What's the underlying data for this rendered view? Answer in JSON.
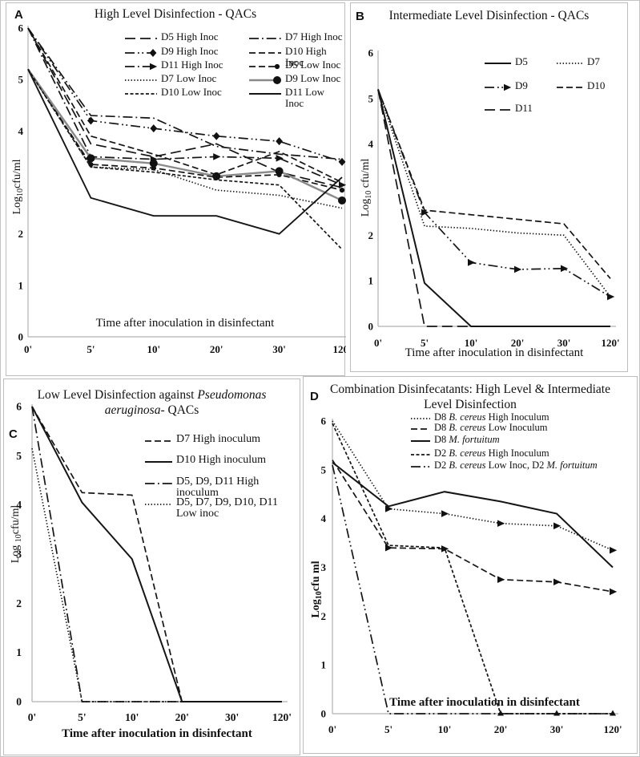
{
  "figure": {
    "colors": {
      "line": "#151515",
      "gray_series": "#8a8a8a",
      "axis": "#b0b0b0",
      "background": "#ffffff",
      "border": "#bdbdbd"
    }
  },
  "chart_data": [
    {
      "panel_letter": "A",
      "type": "line",
      "title_lines": [
        [
          {
            "t": "High Level Disinfection  - QACs"
          }
        ]
      ],
      "ylabel_parts": [
        {
          "t": "Log"
        },
        {
          "t": "10",
          "sub": true
        },
        {
          "t": "cfu/ml"
        }
      ],
      "ylabel_bold": false,
      "xlabel": "Time after inoculation in disinfectant",
      "xlabel_inside": true,
      "x_categories": [
        "0'",
        "5'",
        "10'",
        "20'",
        "30'",
        "120'"
      ],
      "y_ticks": [
        "6",
        "5",
        "4",
        "2",
        "1",
        "0"
      ],
      "ylim": [
        0,
        6
      ],
      "legend_columns": 2,
      "series": [
        {
          "name_parts": [
            {
              "t": "D5 High Inoc"
            }
          ],
          "dash": "long-dash",
          "marker": "none",
          "values": [
            6.0,
            3.75,
            3.5,
            3.75,
            3.2,
            2.9
          ]
        },
        {
          "name_parts": [
            {
              "t": "D7 High Inoc"
            }
          ],
          "dash": "dash-dot",
          "marker": "none",
          "values": [
            6.0,
            4.3,
            4.25,
            3.7,
            3.55,
            3.45
          ]
        },
        {
          "name_parts": [
            {
              "t": "D9 High Inoc"
            }
          ],
          "dash": "dash-dot-dot",
          "marker": "diamond",
          "marker_points": [
            1,
            2,
            3,
            4,
            5
          ],
          "values": [
            6.0,
            4.2,
            4.05,
            3.9,
            3.8,
            3.4
          ]
        },
        {
          "name_parts": [
            {
              "t": "D10 High Inoc"
            }
          ],
          "dash": "dash",
          "marker": "none",
          "values": [
            6.0,
            3.9,
            3.55,
            3.15,
            3.6,
            3.0
          ]
        },
        {
          "name_parts": [
            {
              "t": "D11 High Inoc"
            }
          ],
          "dash": "dash-dot",
          "marker": "arrow",
          "marker_points": [
            1,
            2,
            3,
            4,
            5
          ],
          "values": [
            6.0,
            3.5,
            3.45,
            3.5,
            3.47,
            2.95
          ]
        },
        {
          "name_parts": [
            {
              "t": "D5 Low Inoc"
            }
          ],
          "dash": "dash",
          "marker": "dot-small",
          "marker_points": [
            1,
            2,
            3,
            4,
            5
          ],
          "values": [
            5.2,
            3.35,
            3.28,
            3.1,
            3.15,
            2.85
          ]
        },
        {
          "name_parts": [
            {
              "t": "D7 Low Inoc"
            }
          ],
          "dash": "dot",
          "marker": "none",
          "values": [
            5.2,
            3.3,
            3.25,
            2.85,
            2.75,
            2.5
          ]
        },
        {
          "name_parts": [
            {
              "t": "D9 Low Inoc"
            }
          ],
          "dash": "solid",
          "marker": "dot-large",
          "marker_points": [
            1,
            2,
            3,
            4,
            5
          ],
          "color": "gray",
          "width": 2.4,
          "values": [
            5.2,
            3.47,
            3.37,
            3.12,
            3.22,
            2.65
          ]
        },
        {
          "name_parts": [
            {
              "t": "D10 Low Inoc"
            }
          ],
          "dash": "short-dash",
          "marker": "none",
          "values": [
            5.2,
            3.3,
            3.2,
            3.05,
            2.95,
            1.7
          ]
        },
        {
          "name_parts": [
            {
              "t": "D11 Low Inoc"
            }
          ],
          "dash": "solid",
          "marker": "none",
          "width": 1.9,
          "values": [
            5.2,
            2.7,
            2.35,
            2.35,
            2.0,
            3.1
          ]
        }
      ]
    },
    {
      "panel_letter": "B",
      "type": "line",
      "title_lines": [
        [
          {
            "t": "Intermediate Level Disinfection - QACs"
          }
        ]
      ],
      "ylabel_parts": [
        {
          "t": "Log"
        },
        {
          "t": "10",
          "sub": true
        },
        {
          "t": " cfu/ml"
        }
      ],
      "ylabel_bold": false,
      "xlabel": "Time after inoculation in disinfectant",
      "xlabel_inside": false,
      "x_categories": [
        "0'",
        "5'",
        "10'",
        "20'",
        "30'",
        "120'"
      ],
      "y_ticks": [
        "6",
        "5",
        "4",
        "2",
        "1",
        "0"
      ],
      "ylim": [
        0,
        6
      ],
      "legend_columns": 2,
      "series": [
        {
          "name_parts": [
            {
              "t": "D5"
            }
          ],
          "dash": "solid",
          "marker": "none",
          "width": 2,
          "values": [
            5.2,
            0.95,
            0,
            0,
            0,
            0
          ]
        },
        {
          "name_parts": [
            {
              "t": "D7"
            }
          ],
          "dash": "dot",
          "marker": "none",
          "values": [
            5.2,
            2.2,
            2.15,
            2.05,
            2.0,
            0.65
          ]
        },
        {
          "name_parts": [
            {
              "t": "D9"
            }
          ],
          "dash": "dash-dot-dot",
          "marker": "arrow",
          "marker_points": [
            1,
            2,
            3,
            4,
            5
          ],
          "values": [
            5.2,
            2.5,
            1.4,
            1.25,
            1.27,
            0.65
          ]
        },
        {
          "name_parts": [
            {
              "t": "D10"
            }
          ],
          "dash": "dash",
          "marker": "none",
          "values": [
            5.2,
            2.55,
            2.45,
            2.35,
            2.25,
            1.05
          ]
        },
        {
          "name_parts": [
            {
              "t": "D11"
            }
          ],
          "dash": "long-dash",
          "marker": "none",
          "values": [
            5.2,
            0,
            0,
            0,
            0,
            0
          ]
        }
      ]
    },
    {
      "panel_letter": "C",
      "type": "line",
      "title_lines": [
        [
          {
            "t": "Low Level Disinfection against "
          },
          {
            "t": "Pseudomonas",
            "i": true
          }
        ],
        [
          {
            "t": "aeruginosa",
            "i": true
          },
          {
            "t": "- QACs"
          }
        ]
      ],
      "ylabel_parts": [
        {
          "t": "Log "
        },
        {
          "t": "10",
          "sub": true
        },
        {
          "t": "cfu/ml"
        }
      ],
      "ylabel_bold": false,
      "xlabel": "Time after inoculation in disinfectant",
      "xlabel_inside": false,
      "x_categories": [
        "0'",
        "5'",
        "10'",
        "20'",
        "30'",
        "120'"
      ],
      "y_ticks": [
        "6",
        "5",
        "4",
        "3",
        "2",
        "1",
        "0"
      ],
      "ylim": [
        0,
        6
      ],
      "legend_columns": 1,
      "series": [
        {
          "name_parts": [
            {
              "t": "D7 High inoculum"
            }
          ],
          "dash": "dash",
          "marker": "none",
          "values": [
            6.0,
            4.25,
            4.2,
            0,
            0,
            0
          ]
        },
        {
          "name_parts": [
            {
              "t": "D10 High inoculum"
            }
          ],
          "dash": "solid",
          "marker": "none",
          "width": 2,
          "values": [
            6.0,
            4.05,
            2.9,
            0,
            0,
            0
          ]
        },
        {
          "name_parts": [
            {
              "t": "D5, D9, D11 High inoculum"
            }
          ],
          "dash": "dash-dot",
          "marker": "none",
          "values": [
            6.0,
            0,
            0,
            0,
            0,
            0
          ]
        },
        {
          "name_parts": [
            {
              "t": "D5, D7, D9, D10, D11 Low inoc"
            }
          ],
          "dash": "dot",
          "marker": "none",
          "values": [
            5.15,
            0,
            0,
            0,
            0,
            0
          ]
        }
      ]
    },
    {
      "panel_letter": "D",
      "type": "line",
      "title_lines": [
        [
          {
            "t": "Combination Disinfecatants: High Level & Intermediate"
          }
        ],
        [
          {
            "t": "Level Disinfection"
          }
        ]
      ],
      "ylabel_parts": [
        {
          "t": "Log"
        },
        {
          "t": "10",
          "sub": true
        },
        {
          "t": "cfu ml"
        }
      ],
      "ylabel_bold": true,
      "xlabel": "Time after inoculation in disinfectant",
      "xlabel_inside": true,
      "x_categories": [
        "0'",
        "5'",
        "10'",
        "20'",
        "30'",
        "120'"
      ],
      "y_ticks": [
        "6",
        "5",
        "4",
        "3",
        "2",
        "1",
        "0"
      ],
      "ylim": [
        0,
        6
      ],
      "legend_columns": 1,
      "legend_markers": false,
      "series": [
        {
          "name_parts": [
            {
              "t": "D8 "
            },
            {
              "t": "B. cereus",
              "i": true
            },
            {
              "t": " High Inoculum"
            }
          ],
          "dash": "dot",
          "marker": "arrow",
          "marker_points": [
            1,
            2,
            3,
            4,
            5
          ],
          "values": [
            6.0,
            4.2,
            4.1,
            3.9,
            3.85,
            3.35
          ]
        },
        {
          "name_parts": [
            {
              "t": "D8 "
            },
            {
              "t": "B. cereus",
              "i": true
            },
            {
              "t": " Low Inoculum"
            }
          ],
          "dash": "dash",
          "marker": "arrow",
          "marker_points": [
            1,
            2,
            3,
            4,
            5
          ],
          "values": [
            5.2,
            3.4,
            3.38,
            2.75,
            2.7,
            2.5
          ]
        },
        {
          "name_parts": [
            {
              "t": "D8 "
            },
            {
              "t": "M. fortuitum",
              "i": true
            }
          ],
          "dash": "solid",
          "marker": "none",
          "width": 2,
          "values": [
            5.15,
            4.25,
            4.55,
            4.35,
            4.1,
            3.0
          ]
        },
        {
          "name_parts": [
            {
              "t": "D2 "
            },
            {
              "t": "B. cereus",
              "i": true
            },
            {
              "t": " High Inoculum"
            }
          ],
          "dash": "short-dash",
          "marker": "none",
          "values": [
            5.95,
            3.45,
            3.4,
            0,
            0,
            0
          ]
        },
        {
          "name_parts": [
            {
              "t": "D2 "
            },
            {
              "t": "B. cereus",
              "i": true
            },
            {
              "t": " Low Inoc, D2 "
            },
            {
              "t": "M. fortuitum",
              "i": true
            }
          ],
          "dash": "dash-dot-dot",
          "marker": "triangle-up",
          "marker_points": [
            3,
            4,
            5
          ],
          "values": [
            5.1,
            0,
            0,
            0,
            0,
            0
          ]
        }
      ]
    }
  ]
}
